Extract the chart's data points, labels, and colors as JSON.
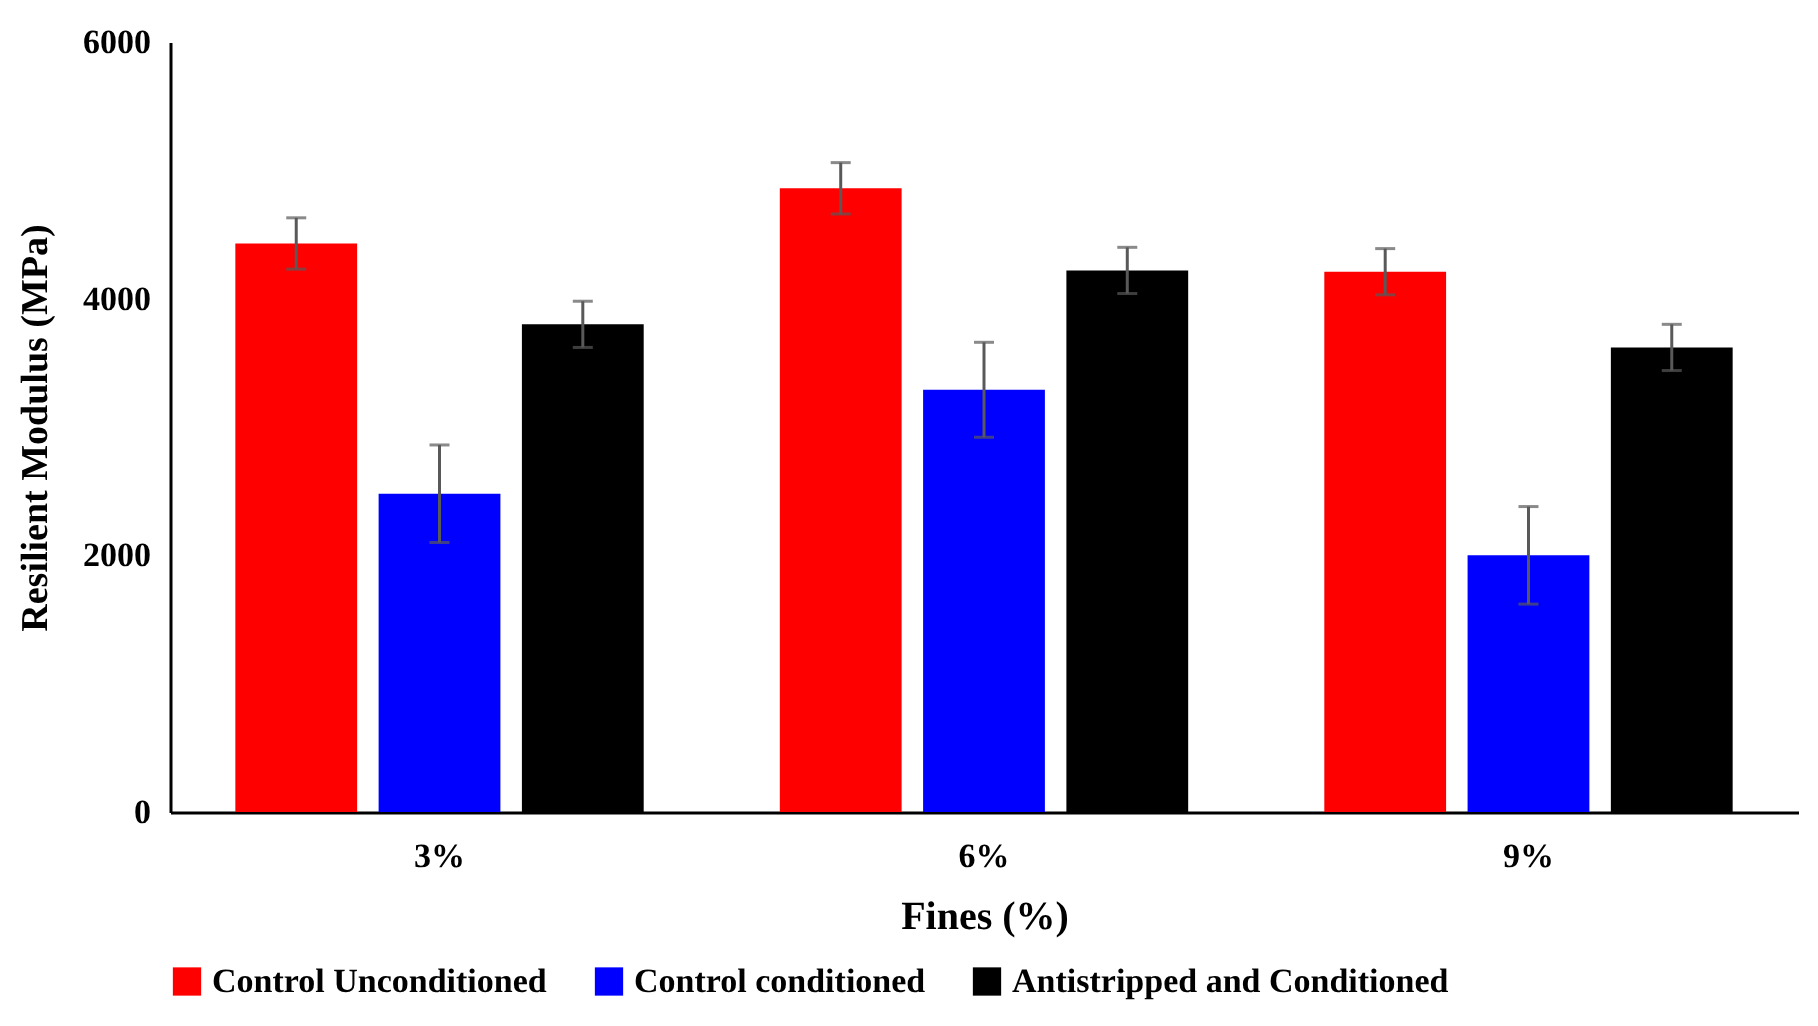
{
  "chart_data": {
    "type": "bar",
    "xlabel": "Fines (%)",
    "ylabel": "Resilient Modulus (MPa)",
    "categories": [
      "3%",
      "6%",
      "9%"
    ],
    "series": [
      {
        "name": "Control Unconditioned",
        "color": "#ff0000",
        "values": [
          4430,
          4860,
          4210
        ],
        "errors": [
          200,
          200,
          180
        ]
      },
      {
        "name": "Control conditioned",
        "color": "#0000ff",
        "values": [
          2480,
          3290,
          2000
        ],
        "errors": [
          380,
          370,
          380
        ]
      },
      {
        "name": "Antistripped and Conditioned",
        "color": "#000000",
        "values": [
          3800,
          4220,
          3620
        ],
        "errors": [
          180,
          180,
          180
        ]
      }
    ],
    "ylim": [
      0,
      6000
    ],
    "yticks": [
      0,
      2000,
      4000,
      6000
    ],
    "grid": false,
    "legend": "bottom"
  }
}
